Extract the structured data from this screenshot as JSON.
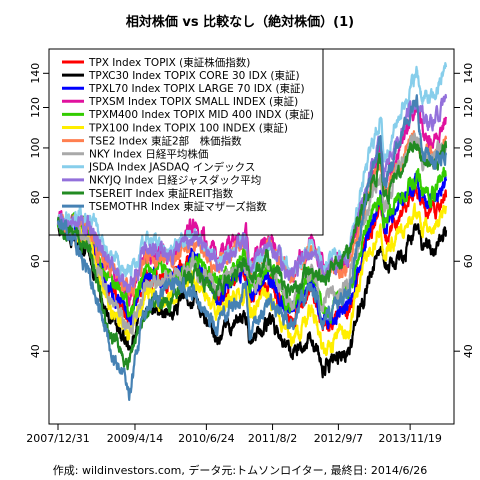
{
  "chart_data": {
    "type": "line",
    "title": "相対株価 vs 比較なし（絶対株価）(1)",
    "caption": "作成: wildinvestors.com, データ元:トムソンロイター, 最終日: 2014/6/26",
    "x_ticks": [
      "2007/12/31",
      "2009/4/14",
      "2010/6/24",
      "2011/8/2",
      "2012/9/7",
      "2013/11/19"
    ],
    "x_range": [
      "2007/12/31",
      "2014/6/26"
    ],
    "y_scale": "log",
    "ylim": [
      30,
      150
    ],
    "y_ticks_left": [
      40,
      60,
      80,
      100,
      120,
      140
    ],
    "y_ticks_right": [
      40,
      60,
      80,
      100,
      120,
      140
    ],
    "grid": false,
    "legend_position": "top-left",
    "x": [
      "2007/12/31",
      "2008/6/30",
      "2008/10/27",
      "2009/3/10",
      "2009/6/15",
      "2009/12/1",
      "2010/4/5",
      "2010/8/31",
      "2011/2/21",
      "2011/3/15",
      "2011/7/8",
      "2011/11/25",
      "2012/3/27",
      "2012/6/4",
      "2012/11/14",
      "2013/5/22",
      "2013/6/13",
      "2013/12/30",
      "2014/2/4",
      "2014/4/11",
      "2014/6/26"
    ],
    "series": [
      {
        "name": "TPX Index TOPIX (東証株価指数)",
        "color": "#ff0000",
        "values": [
          72,
          67,
          53,
          46,
          56,
          55,
          61,
          51,
          58,
          51,
          55,
          46,
          54,
          45,
          48,
          78,
          66,
          82,
          76,
          75,
          80
        ]
      },
      {
        "name": "TPXC30 Index TOPIX CORE 30 IDX (東証)",
        "color": "#000000",
        "values": [
          72,
          63,
          48,
          40,
          48,
          48,
          51,
          43,
          48,
          42,
          46,
          39,
          43,
          37,
          40,
          65,
          56,
          68,
          63,
          62,
          69
        ]
      },
      {
        "name": "TPXL70 Index TOPIX LARGE 70 IDX (東証)",
        "color": "#0000ff",
        "values": [
          72,
          68,
          54,
          46,
          56,
          55,
          61,
          51,
          59,
          52,
          56,
          47,
          55,
          46,
          49,
          82,
          69,
          87,
          80,
          79,
          87
        ]
      },
      {
        "name": "TPXSM Index TOPIX SMALL INDEX (東証)",
        "color": "#e0119d",
        "values": [
          72,
          70,
          59,
          51,
          61,
          62,
          71,
          61,
          68,
          60,
          66,
          57,
          67,
          59,
          61,
          100,
          84,
          118,
          105,
          104,
          115
        ]
      },
      {
        "name": "TPXM400 Index TOPIX MID 400 INDX (東証)",
        "color": "#33cc00",
        "values": [
          72,
          70,
          56,
          48,
          58,
          56,
          62,
          54,
          61,
          54,
          58,
          49,
          57,
          48,
          52,
          82,
          70,
          89,
          82,
          81,
          88
        ]
      },
      {
        "name": "TPX100 Index TOPIX 100 INDEX (東証)",
        "color": "#ffee00",
        "values": [
          72,
          65,
          50,
          43,
          52,
          51,
          56,
          47,
          53,
          47,
          51,
          42,
          48,
          41,
          44,
          73,
          62,
          76,
          70,
          69,
          77
        ]
      },
      {
        "name": "TSE2 Index 東証2部　株価指数",
        "color": "#ff7f50",
        "values": [
          72,
          71,
          60,
          52,
          62,
          60,
          66,
          59,
          65,
          58,
          64,
          56,
          63,
          57,
          59,
          95,
          82,
          106,
          97,
          96,
          104
        ]
      },
      {
        "name": "NKY Index 日経平均株価",
        "color": "#a9a9a9",
        "values": [
          72,
          66,
          51,
          44,
          54,
          56,
          60,
          53,
          60,
          53,
          57,
          49,
          58,
          49,
          55,
          90,
          76,
          107,
          96,
          95,
          101
        ]
      },
      {
        "name": "JSDA Index JASDAQ インデックス",
        "color": "#87ceeb",
        "values": [
          72,
          73,
          63,
          56,
          65,
          64,
          68,
          60,
          66,
          58,
          65,
          57,
          66,
          60,
          63,
          115,
          95,
          140,
          125,
          124,
          144
        ]
      },
      {
        "name": "NKYJQ Index 日経ジャスダック平均",
        "color": "#9370db",
        "values": [
          72,
          71,
          61,
          53,
          63,
          62,
          67,
          59,
          66,
          58,
          64,
          56,
          64,
          57,
          61,
          105,
          89,
          128,
          113,
          112,
          125
        ]
      },
      {
        "name": "TSEREIT Index 東証REIT指数",
        "color": "#228b22",
        "values": [
          72,
          63,
          44,
          38,
          48,
          50,
          57,
          52,
          61,
          55,
          61,
          51,
          58,
          55,
          63,
          95,
          80,
          100,
          93,
          92,
          100
        ]
      },
      {
        "name": "TSEMOTHR Index 東証マザーズ指数",
        "color": "#4682b4",
        "values": [
          72,
          58,
          42,
          33,
          48,
          55,
          52,
          45,
          53,
          44,
          50,
          45,
          55,
          46,
          52,
          105,
          82,
          125,
          97,
          95,
          97
        ]
      }
    ]
  }
}
